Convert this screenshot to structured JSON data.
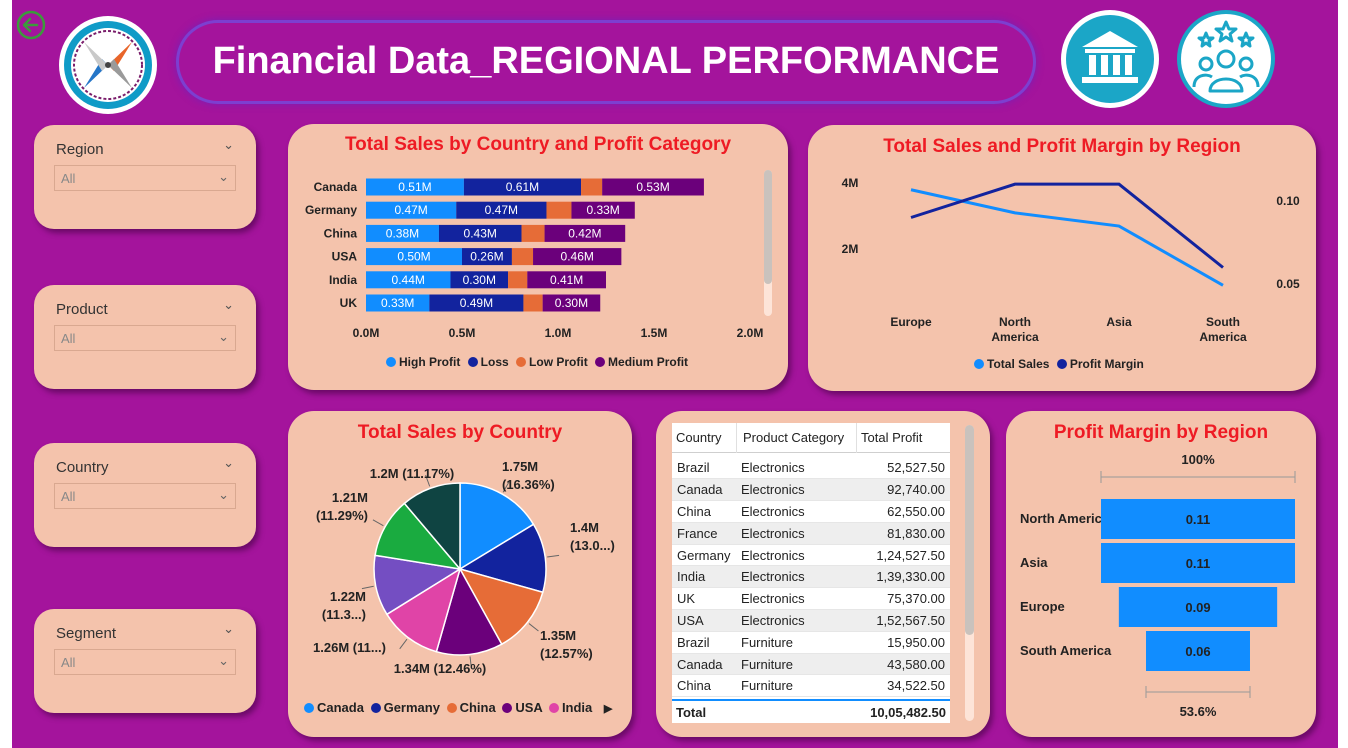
{
  "header": {
    "title": "Financial Data_REGIONAL PERFORMANCE",
    "back_icon": "back-arrow-icon",
    "logo_icon": "compass-icon",
    "bank_icon": "bank-icon",
    "team_icon": "team-stars-icon"
  },
  "slicers": [
    {
      "label": "Region",
      "value": "All"
    },
    {
      "label": "Product",
      "value": "All"
    },
    {
      "label": "Country",
      "value": "All"
    },
    {
      "label": "Segment",
      "value": "All"
    }
  ],
  "colors": {
    "high_profit": "#118dff",
    "loss": "#12239e",
    "low_profit": "#e66c37",
    "medium_profit": "#6b007b",
    "india": "#e044a7",
    "uk": "#744ec2",
    "france": "#1aab40",
    "brazil": "#0f4442",
    "title_red": "#ee1b24",
    "background": "#a4149c",
    "card": "#f4c3ac"
  },
  "bar_chart": {
    "title": "Total Sales by Country and Profit Category",
    "chart_data": {
      "type": "bar",
      "orientation": "horizontal-stacked",
      "categories": [
        "Canada",
        "Germany",
        "China",
        "USA",
        "India",
        "UK"
      ],
      "series": [
        {
          "name": "High Profit",
          "values": [
            0.51,
            0.47,
            0.38,
            0.5,
            0.44,
            0.33
          ],
          "labels": [
            "0.51M",
            "0.47M",
            "0.38M",
            "0.50M",
            "0.44M",
            "0.33M"
          ]
        },
        {
          "name": "Loss",
          "values": [
            0.61,
            0.47,
            0.43,
            0.26,
            0.3,
            0.49
          ],
          "labels": [
            "0.61M",
            "0.47M",
            "0.43M",
            "0.26M",
            "0.30M",
            "0.49M"
          ]
        },
        {
          "name": "Low Profit",
          "values": [
            0.11,
            0.13,
            0.12,
            0.11,
            0.1,
            0.1
          ],
          "labels": [
            "",
            "",
            "",
            "",
            "",
            ""
          ]
        },
        {
          "name": "Medium Profit",
          "values": [
            0.53,
            0.33,
            0.42,
            0.46,
            0.41,
            0.3
          ],
          "labels": [
            "0.53M",
            "0.33M",
            "0.42M",
            "0.46M",
            "0.41M",
            "0.30M"
          ]
        }
      ],
      "xlim": [
        0,
        2.0
      ],
      "ticks": [
        "0.0M",
        "0.5M",
        "1.0M",
        "1.5M",
        "2.0M"
      ],
      "legend": "bottom"
    }
  },
  "line_chart": {
    "title": "Total Sales and Profit Margin by Region",
    "chart_data": {
      "type": "line",
      "categories": [
        "Europe",
        "North America",
        "Asia",
        "South America"
      ],
      "category_lines": [
        [
          "Europe"
        ],
        [
          "North",
          "America"
        ],
        [
          "Asia"
        ],
        [
          "South",
          "America"
        ]
      ],
      "series": [
        {
          "name": "Total Sales",
          "axis": "left",
          "values": [
            3.8,
            3.1,
            2.7,
            0.9
          ]
        },
        {
          "name": "Profit Margin",
          "axis": "right",
          "values": [
            0.09,
            0.11,
            0.11,
            0.06
          ]
        }
      ],
      "left_ticks": [
        "4M",
        "2M"
      ],
      "left_tick_values": [
        4,
        2
      ],
      "left_range": [
        0,
        4.4
      ],
      "right_ticks": [
        "0.10",
        "0.05"
      ],
      "right_tick_values": [
        0.1,
        0.05
      ],
      "right_range": [
        0.0315,
        0.1185
      ],
      "legend": "bottom"
    }
  },
  "pie_chart": {
    "title": "Total Sales by Country",
    "chart_data": {
      "type": "pie",
      "categories": [
        "Canada",
        "Germany",
        "China",
        "USA",
        "India",
        "UK",
        "France",
        "Brazil"
      ],
      "values": [
        1.75,
        1.4,
        1.35,
        1.34,
        1.26,
        1.22,
        1.21,
        1.2
      ],
      "labels": [
        [
          "1.75M",
          "(16.36%)"
        ],
        [
          "1.4M",
          "(13.0...)"
        ],
        [
          "1.35M",
          "(12.57%)"
        ],
        [
          "1.34M (12.46%)"
        ],
        [
          "1.26M (11...)"
        ],
        [
          "1.22M",
          "(11.3...)"
        ],
        [
          "1.21M",
          "(11.29%)"
        ],
        [
          "1.2M (11.17%)"
        ]
      ],
      "legend_visible": [
        "Canada",
        "Germany",
        "China",
        "USA",
        "India"
      ],
      "legend_more_icon": "play-right-icon"
    }
  },
  "table": {
    "columns": [
      "Country",
      "Product Category",
      "Total Profit"
    ],
    "rows": [
      [
        "Brazil",
        "Electronics",
        "52,527.50"
      ],
      [
        "Canada",
        "Electronics",
        "92,740.00"
      ],
      [
        "China",
        "Electronics",
        "62,550.00"
      ],
      [
        "France",
        "Electronics",
        "81,830.00"
      ],
      [
        "Germany",
        "Electronics",
        "1,24,527.50"
      ],
      [
        "India",
        "Electronics",
        "1,39,330.00"
      ],
      [
        "UK",
        "Electronics",
        "75,370.00"
      ],
      [
        "USA",
        "Electronics",
        "1,52,567.50"
      ],
      [
        "Brazil",
        "Furniture",
        "15,950.00"
      ],
      [
        "Canada",
        "Furniture",
        "43,580.00"
      ],
      [
        "China",
        "Furniture",
        "34,522.50"
      ]
    ],
    "total_label": "Total",
    "total_value": "10,05,482.50"
  },
  "funnel": {
    "title": "Profit Margin by Region",
    "top_label": "100%",
    "bottom_label": "53.6%",
    "chart_data": {
      "type": "bar",
      "orientation": "funnel",
      "categories": [
        "North America",
        "Asia",
        "Europe",
        "South America"
      ],
      "values": [
        0.11,
        0.11,
        0.09,
        0.06
      ],
      "labels": [
        "0.11",
        "0.11",
        "0.09",
        "0.06"
      ],
      "relative": [
        1.0,
        1.0,
        0.816,
        0.536
      ]
    }
  }
}
